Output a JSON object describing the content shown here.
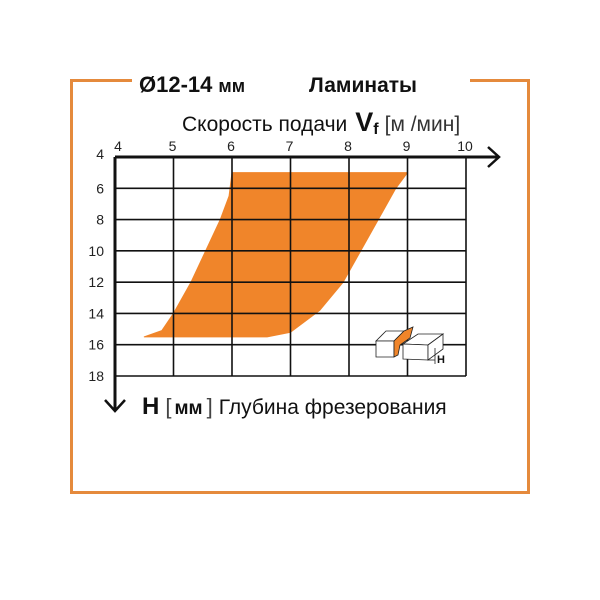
{
  "header": {
    "diameter": "Ø12-14",
    "diameter_unit": "мм",
    "material": "Ламинаты"
  },
  "colors": {
    "accent": "#F0852A",
    "frame": "#E58A3C",
    "grid": "#111111"
  },
  "chart_data": {
    "type": "area",
    "xlabel": {
      "prefix": "Скорость подачи",
      "symbol": "V",
      "subscript": "f",
      "unit": "[м /мин]"
    },
    "ylabel": {
      "symbol": "H",
      "unit_open": "[",
      "unit": "мм",
      "unit_close": "]",
      "text": "Глубина фрезерования"
    },
    "x_range": [
      4,
      10
    ],
    "y_range": [
      4,
      18
    ],
    "y_inverted": true,
    "x_ticks": [
      "4",
      "5",
      "6",
      "7",
      "8",
      "9",
      "10"
    ],
    "y_ticks": [
      "4",
      "6",
      "8",
      "10",
      "12",
      "14",
      "16",
      "18"
    ],
    "grid": true,
    "region": [
      [
        6,
        5
      ],
      [
        9,
        5
      ],
      [
        8.8,
        6
      ],
      [
        8.5,
        8
      ],
      [
        8.2,
        10
      ],
      [
        7.9,
        12
      ],
      [
        7.5,
        13.8
      ],
      [
        7.0,
        15.2
      ],
      [
        6.6,
        15.5
      ],
      [
        4.5,
        15.5
      ],
      [
        4.8,
        15.1
      ],
      [
        5.0,
        14
      ],
      [
        5.3,
        12
      ],
      [
        5.55,
        10
      ],
      [
        5.8,
        8
      ],
      [
        5.95,
        6.5
      ]
    ],
    "inset_icon": {
      "name": "milling-depth-icon",
      "label": "H"
    }
  }
}
